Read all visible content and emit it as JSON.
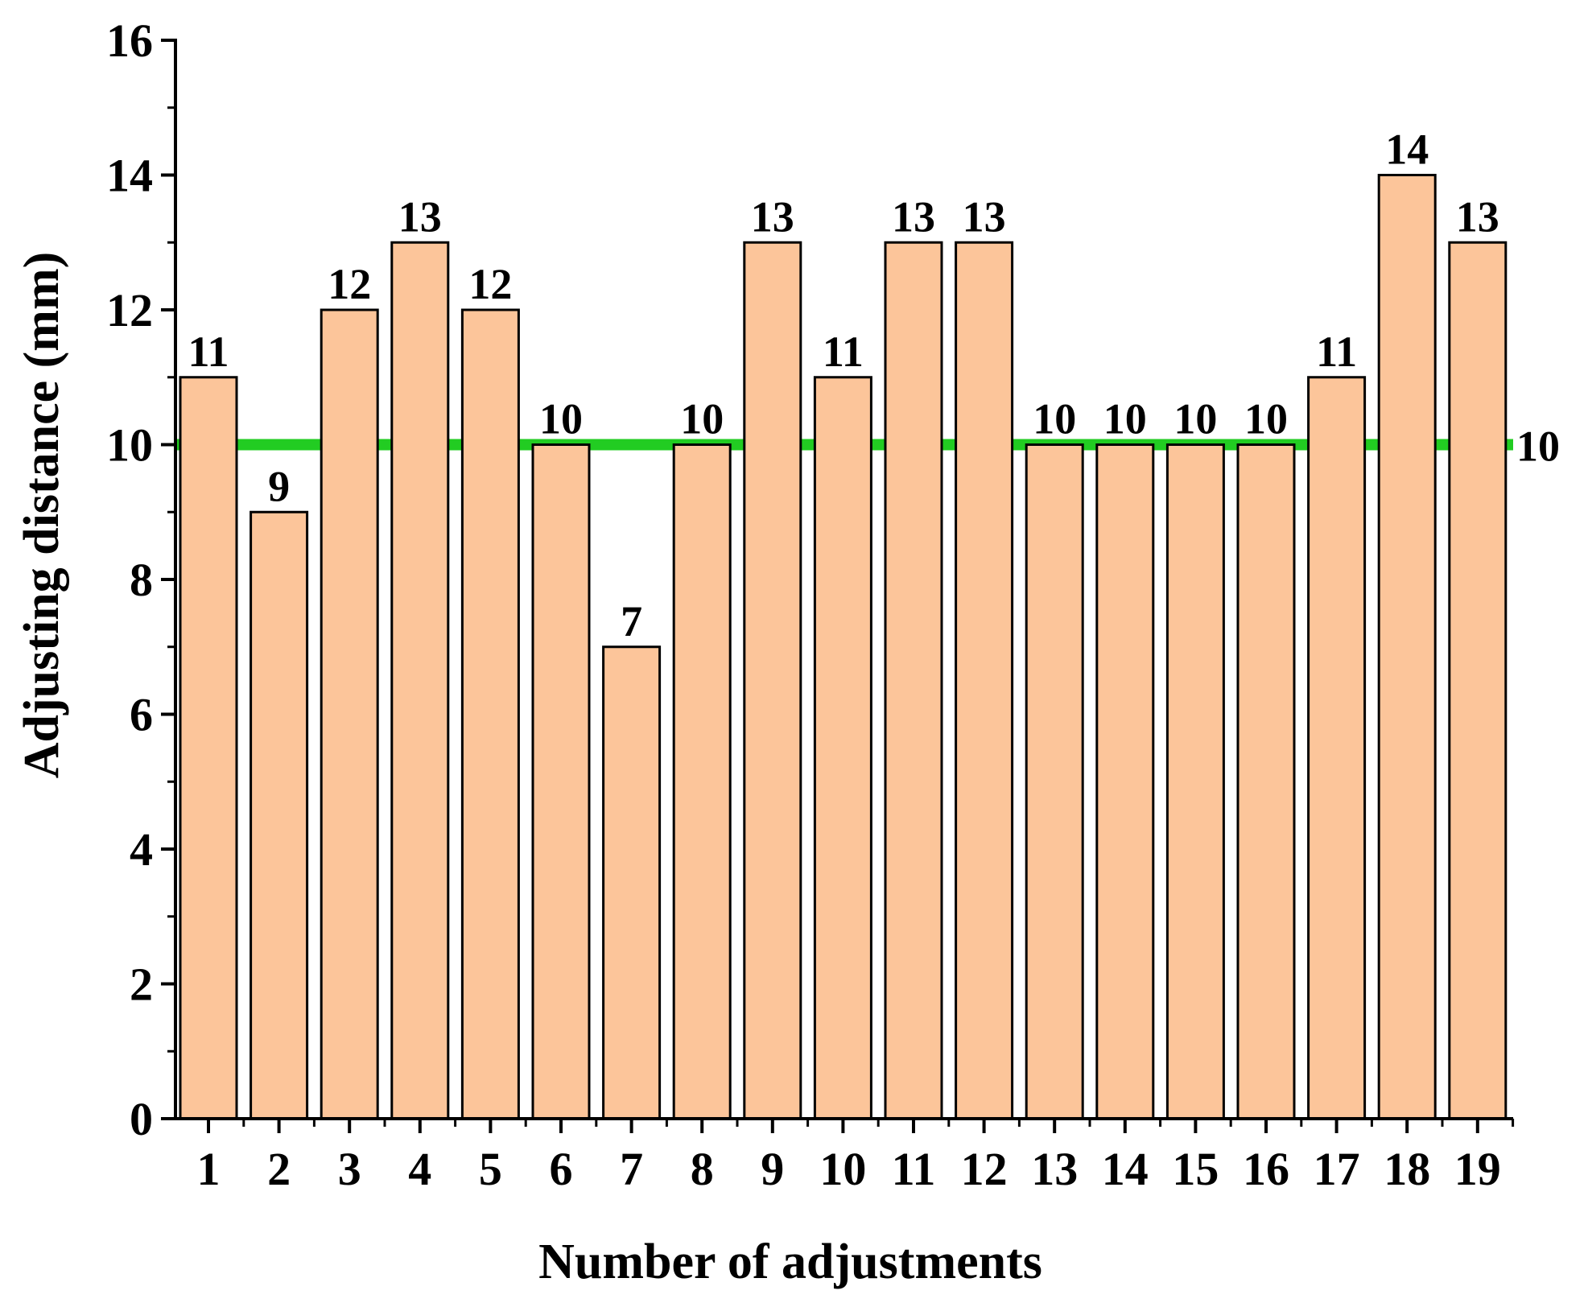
{
  "chart_data": {
    "type": "bar",
    "title": "",
    "xlabel": "Number of adjustments",
    "ylabel": "Adjusting distance (mm)",
    "categories": [
      "1",
      "2",
      "3",
      "4",
      "5",
      "6",
      "7",
      "8",
      "9",
      "10",
      "11",
      "12",
      "13",
      "14",
      "15",
      "16",
      "17",
      "18",
      "19"
    ],
    "values": [
      11,
      9,
      12,
      13,
      12,
      10,
      7,
      10,
      13,
      11,
      13,
      13,
      10,
      10,
      10,
      10,
      11,
      14,
      13
    ],
    "data_labels": [
      "11",
      "9",
      "12",
      "13",
      "12",
      "10",
      "7",
      "10",
      "13",
      "11",
      "13",
      "13",
      "10",
      "10",
      "10",
      "10",
      "11",
      "14",
      "13"
    ],
    "ylim": [
      0,
      16
    ],
    "yticks": [
      "0",
      "2",
      "4",
      "6",
      "8",
      "10",
      "12",
      "14",
      "16"
    ],
    "reference_line": {
      "value": 10,
      "label": "10",
      "color": "#22cc22"
    },
    "bar_color": "#fcc59a",
    "bar_edge_color": "#000000",
    "grid": false,
    "legend": "none"
  }
}
